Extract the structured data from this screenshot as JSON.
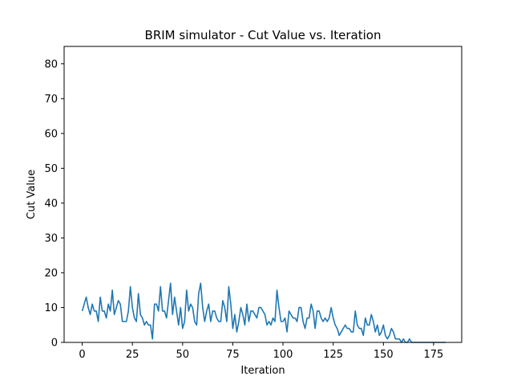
{
  "chart_data": {
    "type": "line",
    "title": "BRIM simulator - Cut Value vs. Iteration",
    "xlabel": "Iteration",
    "ylabel": "Cut Value",
    "xlim": [
      -9,
      189
    ],
    "ylim": [
      0,
      85
    ],
    "xticks": [
      0,
      25,
      50,
      75,
      100,
      125,
      150,
      175
    ],
    "yticks": [
      0,
      10,
      20,
      30,
      40,
      50,
      60,
      70,
      80
    ],
    "grid": false,
    "line_color": "#1f77b4",
    "series": [
      {
        "values": [
          9,
          11,
          13,
          10,
          8,
          11,
          9,
          9,
          6,
          13,
          9,
          9,
          7,
          11,
          9,
          15,
          8,
          10,
          12,
          11,
          6,
          6,
          6,
          9,
          16,
          10,
          7,
          6,
          14,
          8,
          7,
          5,
          6,
          5,
          5,
          1,
          11,
          11,
          9,
          16,
          9,
          9,
          7,
          12,
          17,
          8,
          13,
          9,
          5,
          10,
          4,
          6,
          15,
          9,
          11,
          10,
          6,
          5,
          14,
          17,
          10,
          6,
          9,
          11,
          6,
          9,
          9,
          7,
          6,
          6,
          12,
          10,
          6,
          16,
          11,
          4,
          8,
          3,
          6,
          10,
          8,
          5,
          11,
          6,
          9,
          9,
          8,
          7,
          10,
          10,
          9,
          8,
          5,
          6,
          5,
          7,
          6,
          15,
          10,
          6,
          6,
          7,
          3,
          9,
          8,
          7,
          7,
          6,
          10,
          10,
          6,
          4,
          7,
          7,
          11,
          9,
          4,
          9,
          9,
          7,
          6,
          7,
          6,
          7,
          10,
          7,
          5,
          4,
          2,
          3,
          4,
          5,
          4,
          4,
          3,
          3,
          9,
          5,
          4,
          4,
          2,
          7,
          5,
          5,
          8,
          6,
          3,
          5,
          2,
          3,
          5,
          2,
          1,
          2,
          4,
          3,
          1,
          1,
          1,
          0,
          1,
          0,
          0,
          1,
          0,
          0,
          0,
          0,
          0,
          0,
          0,
          0,
          0,
          0,
          0,
          0,
          0,
          0,
          0,
          0,
          0,
          0
        ]
      }
    ]
  }
}
